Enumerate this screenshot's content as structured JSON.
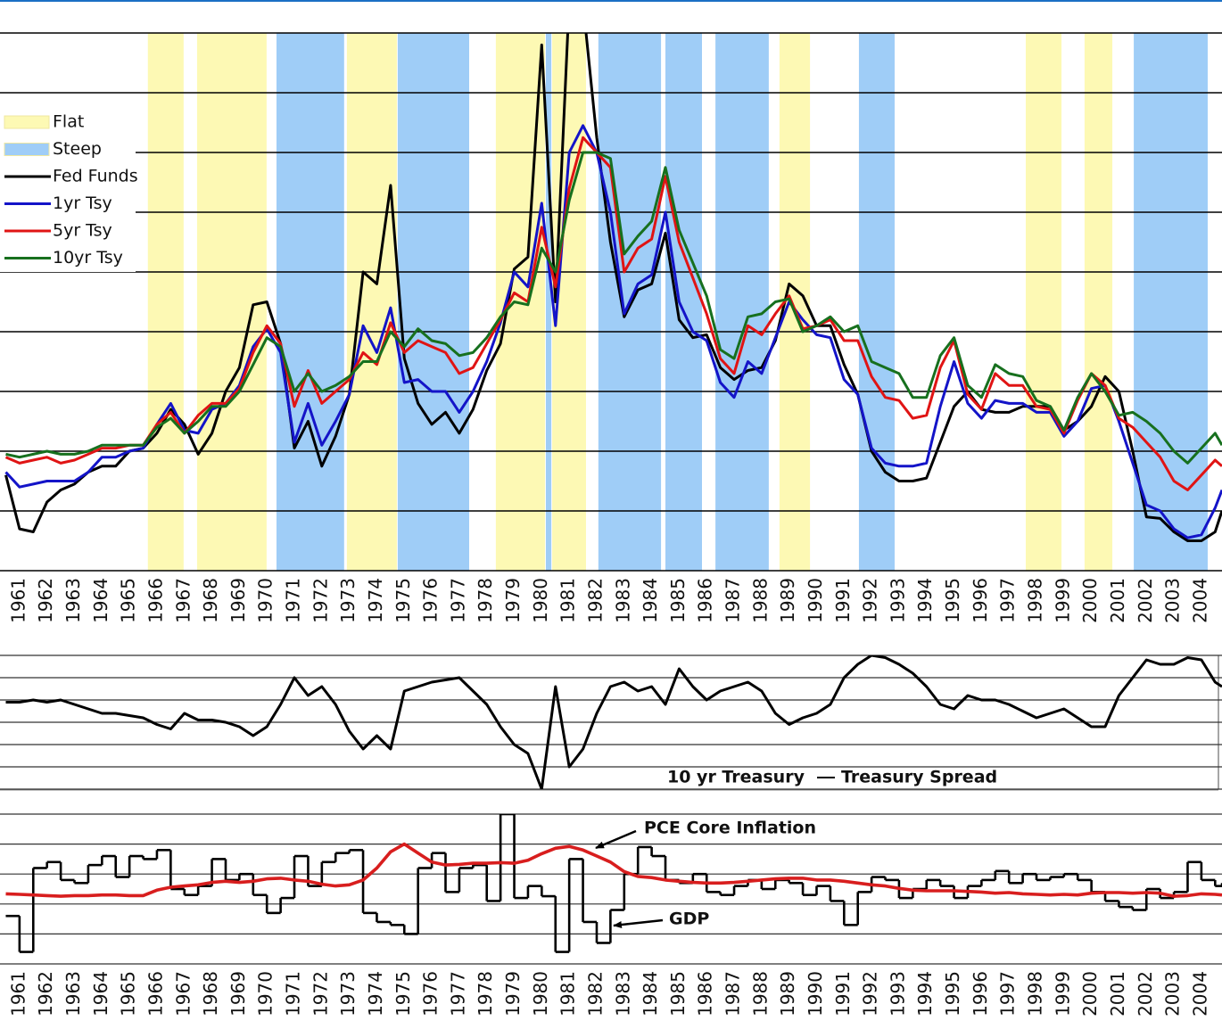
{
  "chart_data": [
    {
      "type": "line",
      "legend": "upper left",
      "grid": true,
      "xlim": [
        1960.29,
        2004.75
      ],
      "ylim": [
        0,
        18
      ],
      "yticks": [
        0,
        2,
        4,
        6,
        8,
        10,
        12,
        14,
        16,
        18
      ],
      "xticks": [
        1961,
        1962,
        1963,
        1964,
        1965,
        1966,
        1967,
        1968,
        1969,
        1970,
        1971,
        1972,
        1973,
        1974,
        1975,
        1976,
        1977,
        1978,
        1979,
        1980,
        1981,
        1982,
        1983,
        1984,
        1985,
        1986,
        1987,
        1988,
        1989,
        1990,
        1991,
        1992,
        1993,
        1994,
        1995,
        1996,
        1997,
        1998,
        1999,
        2000,
        2001,
        2002,
        2003,
        2004
      ],
      "bands": [
        {
          "name": "Flat",
          "color": "#fdf9b4",
          "periods": [
            [
              1965.67,
              1966.97
            ],
            [
              1967.46,
              1969.99
            ],
            [
              1972.91,
              1974.73
            ],
            [
              1978.33,
              1980.12
            ],
            [
              1980.38,
              1981.61
            ],
            [
              1988.65,
              1989.76
            ],
            [
              1997.61,
              1998.91
            ],
            [
              1999.75,
              2000.76
            ]
          ]
        },
        {
          "name": "Steep",
          "color": "#9fcdf7",
          "periods": [
            [
              1970.35,
              1972.81
            ],
            [
              1974.76,
              1977.36
            ],
            [
              1980.15,
              1980.35
            ],
            [
              1982.06,
              1984.34
            ],
            [
              1984.5,
              1985.83
            ],
            [
              1986.32,
              1988.26
            ],
            [
              1991.54,
              1992.84
            ],
            [
              2001.54,
              2004.23
            ]
          ]
        }
      ],
      "x": [
        1960.5,
        1961,
        1961.5,
        1962,
        1962.5,
        1963,
        1963.5,
        1964,
        1964.5,
        1965,
        1965.5,
        1966,
        1966.5,
        1967,
        1967.5,
        1968,
        1968.5,
        1969,
        1969.5,
        1970,
        1970.5,
        1971,
        1971.5,
        1972,
        1972.5,
        1973,
        1973.5,
        1974,
        1974.5,
        1975,
        1975.5,
        1976,
        1976.5,
        1977,
        1977.5,
        1978,
        1978.5,
        1979,
        1979.5,
        1980,
        1980.5,
        1981,
        1981.5,
        1982,
        1982.5,
        1983,
        1983.5,
        1984,
        1984.5,
        1985,
        1985.5,
        1986,
        1986.5,
        1987,
        1987.5,
        1988,
        1988.5,
        1989,
        1989.5,
        1990,
        1990.5,
        1991,
        1991.5,
        1992,
        1992.5,
        1993,
        1993.5,
        1994,
        1994.5,
        1995,
        1995.5,
        1996,
        1996.5,
        1997,
        1997.5,
        1998,
        1998.5,
        1999,
        1999.5,
        2000,
        2000.5,
        2001,
        2001.5,
        2002,
        2002.5,
        2003,
        2003.5,
        2004,
        2004.5,
        2004.75
      ],
      "series": [
        {
          "name": "Fed Funds",
          "color": "#000000",
          "values": [
            3.2,
            1.4,
            1.3,
            2.3,
            2.7,
            2.9,
            3.3,
            3.5,
            3.5,
            4.0,
            4.1,
            4.6,
            5.4,
            4.9,
            3.9,
            4.6,
            6.0,
            6.8,
            8.9,
            9.0,
            7.6,
            4.1,
            5.0,
            3.5,
            4.5,
            5.9,
            10.0,
            9.6,
            12.9,
            7.1,
            5.6,
            4.9,
            5.3,
            4.6,
            5.4,
            6.7,
            7.6,
            10.1,
            10.5,
            17.6,
            9.0,
            19.1,
            19.0,
            14.5,
            11.0,
            8.5,
            9.4,
            9.6,
            11.3,
            8.4,
            7.8,
            7.9,
            6.8,
            6.4,
            6.7,
            6.8,
            7.7,
            9.6,
            9.2,
            8.2,
            8.2,
            6.9,
            5.9,
            4.0,
            3.3,
            3.0,
            3.0,
            3.1,
            4.3,
            5.5,
            6.0,
            5.4,
            5.3,
            5.3,
            5.5,
            5.5,
            5.5,
            4.7,
            5.0,
            5.5,
            6.5,
            6.0,
            4.0,
            1.8,
            1.75,
            1.3,
            1.0,
            1.0,
            1.3,
            2.0
          ]
        },
        {
          "name": "1yr Tsy",
          "color": "#1414c8",
          "values": [
            3.3,
            2.8,
            2.9,
            3.0,
            3.0,
            3.0,
            3.3,
            3.8,
            3.8,
            4.0,
            4.1,
            4.9,
            5.6,
            4.7,
            4.6,
            5.4,
            5.6,
            6.2,
            7.5,
            8.1,
            7.3,
            4.3,
            5.6,
            4.2,
            5.0,
            5.9,
            8.2,
            7.3,
            8.8,
            6.3,
            6.4,
            6.0,
            6.0,
            5.3,
            6.0,
            7.0,
            8.3,
            10.0,
            9.5,
            12.3,
            8.2,
            14.0,
            14.9,
            14.0,
            12.0,
            8.6,
            9.6,
            9.9,
            12.0,
            9.0,
            8.0,
            7.7,
            6.3,
            5.8,
            7.0,
            6.6,
            7.8,
            9.0,
            8.4,
            7.9,
            7.8,
            6.4,
            5.9,
            4.1,
            3.6,
            3.5,
            3.5,
            3.6,
            5.5,
            7.0,
            5.6,
            5.1,
            5.7,
            5.6,
            5.6,
            5.3,
            5.3,
            4.5,
            5.0,
            6.1,
            6.2,
            5.0,
            3.6,
            2.2,
            2.0,
            1.4,
            1.1,
            1.2,
            2.1,
            2.7
          ]
        },
        {
          "name": "5yr Tsy",
          "color": "#e01414",
          "values": [
            3.8,
            3.6,
            3.7,
            3.8,
            3.6,
            3.7,
            3.9,
            4.1,
            4.1,
            4.2,
            4.2,
            4.9,
            5.3,
            4.6,
            5.2,
            5.6,
            5.6,
            6.1,
            7.3,
            8.2,
            7.6,
            5.5,
            6.7,
            5.6,
            6.0,
            6.4,
            7.3,
            6.9,
            8.3,
            7.3,
            7.7,
            7.5,
            7.3,
            6.6,
            6.8,
            7.6,
            8.4,
            9.3,
            9.0,
            11.5,
            9.5,
            12.8,
            14.5,
            14.0,
            13.5,
            10.0,
            10.8,
            11.1,
            13.2,
            11.0,
            9.8,
            8.6,
            7.1,
            6.6,
            8.2,
            7.9,
            8.6,
            9.2,
            8.1,
            8.2,
            8.4,
            7.7,
            7.7,
            6.5,
            5.8,
            5.7,
            5.1,
            5.2,
            6.8,
            7.7,
            5.9,
            5.4,
            6.6,
            6.2,
            6.2,
            5.5,
            5.4,
            4.6,
            5.7,
            6.6,
            6.2,
            5.1,
            4.8,
            4.3,
            3.8,
            3.0,
            2.7,
            3.2,
            3.7,
            3.5
          ]
        },
        {
          "name": "10yr Tsy",
          "color": "#17701e",
          "values": [
            3.9,
            3.8,
            3.9,
            4.0,
            3.9,
            3.9,
            4.0,
            4.2,
            4.2,
            4.2,
            4.2,
            4.8,
            5.1,
            4.6,
            5.0,
            5.5,
            5.5,
            6.0,
            6.9,
            7.8,
            7.5,
            6.0,
            6.6,
            6.0,
            6.2,
            6.5,
            7.0,
            7.0,
            8.0,
            7.5,
            8.1,
            7.7,
            7.6,
            7.2,
            7.3,
            7.8,
            8.5,
            9.0,
            8.9,
            10.8,
            10.0,
            12.4,
            14.0,
            14.0,
            13.8,
            10.6,
            11.2,
            11.7,
            13.5,
            11.4,
            10.3,
            9.2,
            7.4,
            7.1,
            8.5,
            8.6,
            9.0,
            9.1,
            8.0,
            8.2,
            8.5,
            8.0,
            8.2,
            7.0,
            6.8,
            6.6,
            5.8,
            5.8,
            7.2,
            7.8,
            6.2,
            5.8,
            6.9,
            6.6,
            6.5,
            5.7,
            5.5,
            4.7,
            5.8,
            6.6,
            6.0,
            5.2,
            5.3,
            5.0,
            4.6,
            4.0,
            3.6,
            4.1,
            4.6,
            4.2
          ]
        }
      ]
    },
    {
      "type": "line",
      "legend": "lower center",
      "grid": true,
      "xlim": [
        1960.29,
        2004.75
      ],
      "ylim": [
        -3,
        3
      ],
      "yticks": [
        -3,
        -2,
        -1,
        0,
        1,
        2,
        3
      ],
      "annotations": [
        "10 yr Treasury"
      ],
      "x": [
        1960.5,
        1961,
        1961.5,
        1962,
        1962.5,
        1963,
        1963.5,
        1964,
        1964.5,
        1965,
        1965.5,
        1966,
        1966.5,
        1967,
        1967.5,
        1968,
        1968.5,
        1969,
        1969.5,
        1970,
        1970.5,
        1971,
        1971.5,
        1972,
        1972.5,
        1973,
        1973.5,
        1974,
        1974.5,
        1975,
        1975.5,
        1976,
        1976.5,
        1977,
        1977.5,
        1978,
        1978.5,
        1979,
        1979.5,
        1980,
        1980.5,
        1981,
        1981.5,
        1982,
        1982.5,
        1983,
        1983.5,
        1984,
        1984.5,
        1985,
        1985.5,
        1986,
        1986.5,
        1987,
        1987.5,
        1988,
        1988.5,
        1989,
        1989.5,
        1990,
        1990.5,
        1991,
        1991.5,
        1992,
        1992.5,
        1993,
        1993.5,
        1994,
        1994.5,
        1995,
        1995.5,
        1996,
        1996.5,
        1997,
        1997.5,
        1998,
        1998.5,
        1999,
        1999.5,
        2000,
        2000.5,
        2001,
        2001.5,
        2002,
        2002.5,
        2003,
        2003.5,
        2004,
        2004.5,
        2004.75
      ],
      "series": [
        {
          "name": "Treasury Spread",
          "color": "#000000",
          "values": [
            0.9,
            0.9,
            1.0,
            0.9,
            1.0,
            0.8,
            0.6,
            0.4,
            0.4,
            0.3,
            0.2,
            -0.1,
            -0.3,
            0.4,
            0.1,
            0.1,
            0.0,
            -0.2,
            -0.6,
            -0.2,
            0.8,
            2.0,
            1.2,
            1.6,
            0.8,
            -0.4,
            -1.2,
            -0.6,
            -1.2,
            1.4,
            1.6,
            1.8,
            1.9,
            2.0,
            1.4,
            0.8,
            -0.2,
            -1.0,
            -1.4,
            -3.0,
            1.6,
            -2.0,
            -1.2,
            0.4,
            1.6,
            1.8,
            1.4,
            1.6,
            0.8,
            2.4,
            1.6,
            1.0,
            1.4,
            1.6,
            1.8,
            1.4,
            0.4,
            -0.1,
            0.2,
            0.4,
            0.8,
            2.0,
            2.6,
            3.0,
            2.9,
            2.6,
            2.2,
            1.6,
            0.8,
            0.6,
            1.2,
            1.0,
            1.0,
            0.8,
            0.5,
            0.2,
            0.4,
            0.6,
            0.2,
            -0.2,
            -0.2,
            1.2,
            2.0,
            2.8,
            2.6,
            2.6,
            2.9,
            2.8,
            1.8,
            1.6
          ]
        }
      ]
    },
    {
      "type": "line",
      "legend": "inline",
      "grid": true,
      "xlim": [
        1960.29,
        2004.75
      ],
      "ylim": [
        -10,
        15
      ],
      "yticks": [
        -10,
        -5,
        0,
        5,
        10,
        15
      ],
      "xticks": [
        1961,
        1962,
        1963,
        1964,
        1965,
        1966,
        1967,
        1968,
        1969,
        1970,
        1971,
        1972,
        1973,
        1974,
        1975,
        1976,
        1977,
        1978,
        1979,
        1980,
        1981,
        1982,
        1983,
        1984,
        1985,
        1986,
        1987,
        1988,
        1989,
        1990,
        1991,
        1992,
        1993,
        1994,
        1995,
        1996,
        1997,
        1998,
        1999,
        2000,
        2001,
        2002,
        2003,
        2004
      ],
      "x": [
        1960.5,
        1961,
        1961.5,
        1962,
        1962.5,
        1963,
        1963.5,
        1964,
        1964.5,
        1965,
        1965.5,
        1966,
        1966.5,
        1967,
        1967.5,
        1968,
        1968.5,
        1969,
        1969.5,
        1970,
        1970.5,
        1971,
        1971.5,
        1972,
        1972.5,
        1973,
        1973.5,
        1974,
        1974.5,
        1975,
        1975.5,
        1976,
        1976.5,
        1977,
        1977.5,
        1978,
        1978.5,
        1979,
        1979.5,
        1980,
        1980.5,
        1981,
        1981.5,
        1982,
        1982.5,
        1983,
        1983.5,
        1984,
        1984.5,
        1985,
        1985.5,
        1986,
        1986.5,
        1987,
        1987.5,
        1988,
        1988.5,
        1989,
        1989.5,
        1990,
        1990.5,
        1991,
        1991.5,
        1992,
        1992.5,
        1993,
        1993.5,
        1994,
        1994.5,
        1995,
        1995.5,
        1996,
        1996.5,
        1997,
        1997.5,
        1998,
        1998.5,
        1999,
        1999.5,
        2000,
        2000.5,
        2001,
        2001.5,
        2002,
        2002.5,
        2003,
        2003.5,
        2004,
        2004.5,
        2004.75
      ],
      "series": [
        {
          "name": "GDP",
          "color": "#000000",
          "step": true,
          "values": [
            -2.0,
            -8.0,
            6.0,
            7.0,
            4.0,
            3.5,
            6.5,
            8.0,
            4.5,
            8.0,
            7.5,
            9.0,
            2.5,
            1.5,
            3.0,
            7.5,
            4.0,
            5.0,
            1.5,
            -1.5,
            1.0,
            8.0,
            3.0,
            7.0,
            8.5,
            9.0,
            -1.5,
            -3.0,
            -3.5,
            -5.0,
            6.0,
            8.5,
            2.0,
            6.0,
            6.5,
            0.5,
            15.0,
            1.0,
            3.0,
            1.3,
            -8.0,
            7.5,
            -3.0,
            -6.5,
            -1.0,
            5.0,
            9.5,
            8.0,
            4.0,
            3.5,
            5.0,
            2.0,
            1.5,
            3.0,
            4.0,
            2.5,
            4.0,
            3.5,
            1.5,
            3.0,
            0.5,
            -3.5,
            2.0,
            4.5,
            4.0,
            1.0,
            2.5,
            4.0,
            3.0,
            1.0,
            3.0,
            4.0,
            5.5,
            3.5,
            5.0,
            4.0,
            4.5,
            5.0,
            4.0,
            2.0,
            0.5,
            -0.5,
            -1.0,
            2.5,
            1.0,
            2.0,
            7.0,
            4.0,
            3.0,
            3.5
          ]
        },
        {
          "name": "PCE Core Inflation",
          "color": "#d81e1e",
          "values": [
            1.7,
            1.6,
            1.5,
            1.4,
            1.3,
            1.4,
            1.4,
            1.5,
            1.5,
            1.4,
            1.4,
            2.3,
            2.8,
            3.0,
            3.2,
            3.6,
            3.8,
            3.6,
            3.8,
            4.2,
            4.3,
            4.0,
            3.8,
            3.3,
            3.0,
            3.2,
            4.0,
            6.0,
            8.7,
            10.0,
            8.5,
            7.0,
            6.5,
            6.6,
            6.8,
            6.8,
            6.9,
            6.8,
            7.3,
            8.4,
            9.3,
            9.6,
            9.0,
            8.0,
            7.0,
            5.4,
            4.6,
            4.4,
            4.0,
            3.8,
            3.6,
            3.5,
            3.5,
            3.6,
            3.8,
            4.0,
            4.2,
            4.3,
            4.3,
            4.0,
            4.0,
            3.8,
            3.5,
            3.2,
            3.0,
            2.6,
            2.3,
            2.2,
            2.2,
            2.2,
            2.1,
            2.0,
            1.8,
            1.9,
            1.7,
            1.6,
            1.5,
            1.6,
            1.5,
            1.8,
            1.9,
            1.9,
            1.8,
            1.9,
            1.8,
            1.3,
            1.4,
            1.7,
            1.6,
            1.5
          ]
        }
      ]
    }
  ]
}
